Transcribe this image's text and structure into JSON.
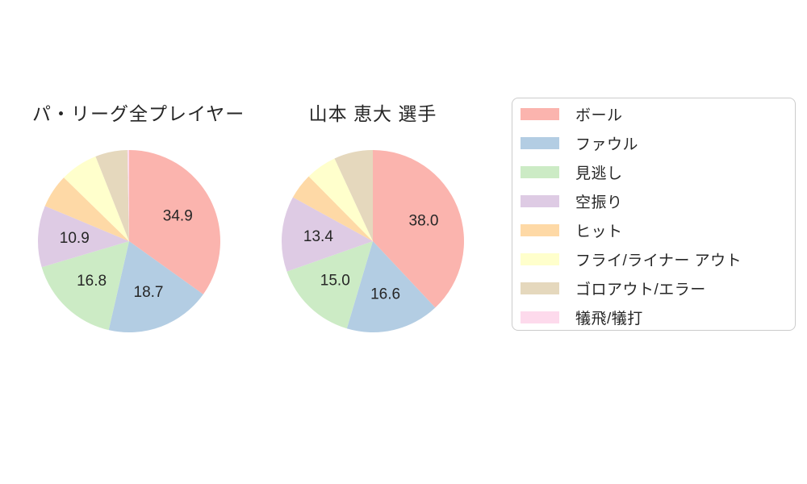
{
  "figure": {
    "background": "#ffffff",
    "text_color": "#262626"
  },
  "chart_data": [
    {
      "type": "pie",
      "title": "パ・リーグ全プレイヤー",
      "unit": "percent",
      "start_angle": "top",
      "direction": "clockwise",
      "label_threshold": 10,
      "categories": [
        "ボール",
        "ファウル",
        "見逃し",
        "空振り",
        "ヒット",
        "フライ/ライナー アウト",
        "ゴロアウト/エラー",
        "犠飛/犠打"
      ],
      "values": [
        34.9,
        18.7,
        16.8,
        10.9,
        6.0,
        6.7,
        5.7,
        0.3
      ],
      "shown_value_labels": [
        "34.9",
        "18.7",
        "16.8",
        "10.9"
      ]
    },
    {
      "type": "pie",
      "title": "山本 恵大  選手",
      "unit": "percent",
      "start_angle": "top",
      "direction": "clockwise",
      "label_threshold": 10,
      "categories": [
        "ボール",
        "ファウル",
        "見逃し",
        "空振り",
        "ヒット",
        "フライ/ライナー アウト",
        "ゴロアウト/エラー",
        "犠飛/犠打"
      ],
      "values": [
        38.0,
        16.6,
        15.0,
        13.4,
        4.6,
        5.5,
        6.9,
        0.0
      ],
      "shown_value_labels": [
        "38.0",
        "16.6",
        "15.0",
        "13.4"
      ]
    }
  ],
  "legend": {
    "position": "right",
    "border_color": "#cccccc",
    "items": [
      {
        "label": "ボール",
        "color": "#fbb4ae"
      },
      {
        "label": "ファウル",
        "color": "#b3cde3"
      },
      {
        "label": "見逃し",
        "color": "#ccebc5"
      },
      {
        "label": "空振り",
        "color": "#decbe4"
      },
      {
        "label": "ヒット",
        "color": "#fed9a6"
      },
      {
        "label": "フライ/ライナー アウト",
        "color": "#ffffcc"
      },
      {
        "label": "ゴロアウト/エラー",
        "color": "#e5d8bd"
      },
      {
        "label": "犠飛/犠打",
        "color": "#fddaec"
      }
    ]
  }
}
